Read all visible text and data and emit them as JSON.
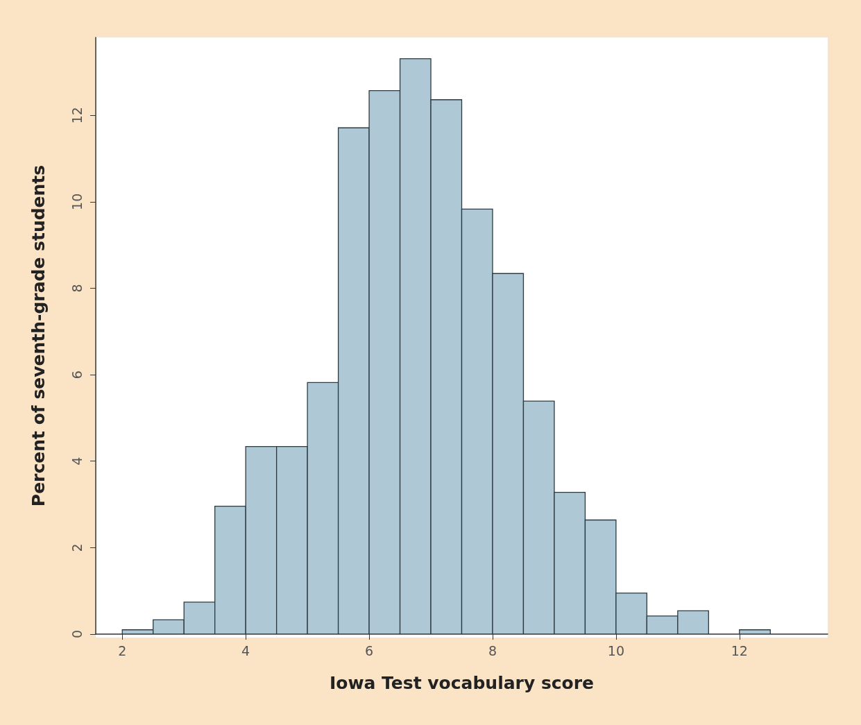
{
  "chart_data": {
    "type": "histogram",
    "xlabel": "Iowa Test vocabulary score",
    "ylabel": "Percent of seventh-grade students",
    "bins": [
      2,
      2.5,
      3,
      3.5,
      4,
      4.5,
      5,
      5.5,
      6,
      6.5,
      7,
      7.5,
      8,
      8.5,
      9,
      9.5,
      10,
      10.5,
      11,
      11.5,
      12,
      12.5
    ],
    "values": [
      0.1,
      0.33,
      0.74,
      2.96,
      4.34,
      4.34,
      5.82,
      11.71,
      12.57,
      13.31,
      12.36,
      9.83,
      8.34,
      5.39,
      3.28,
      2.64,
      0.95,
      0.42,
      0.54,
      0,
      0.1
    ],
    "color": "#aec8d6",
    "xlim": [
      1.57,
      13.43
    ],
    "xticks": [
      2,
      4,
      6,
      8,
      10,
      12
    ],
    "ylim": [
      0,
      13.8
    ],
    "yticks": [
      0,
      2,
      4,
      6,
      8,
      10,
      12
    ],
    "grid": false
  }
}
